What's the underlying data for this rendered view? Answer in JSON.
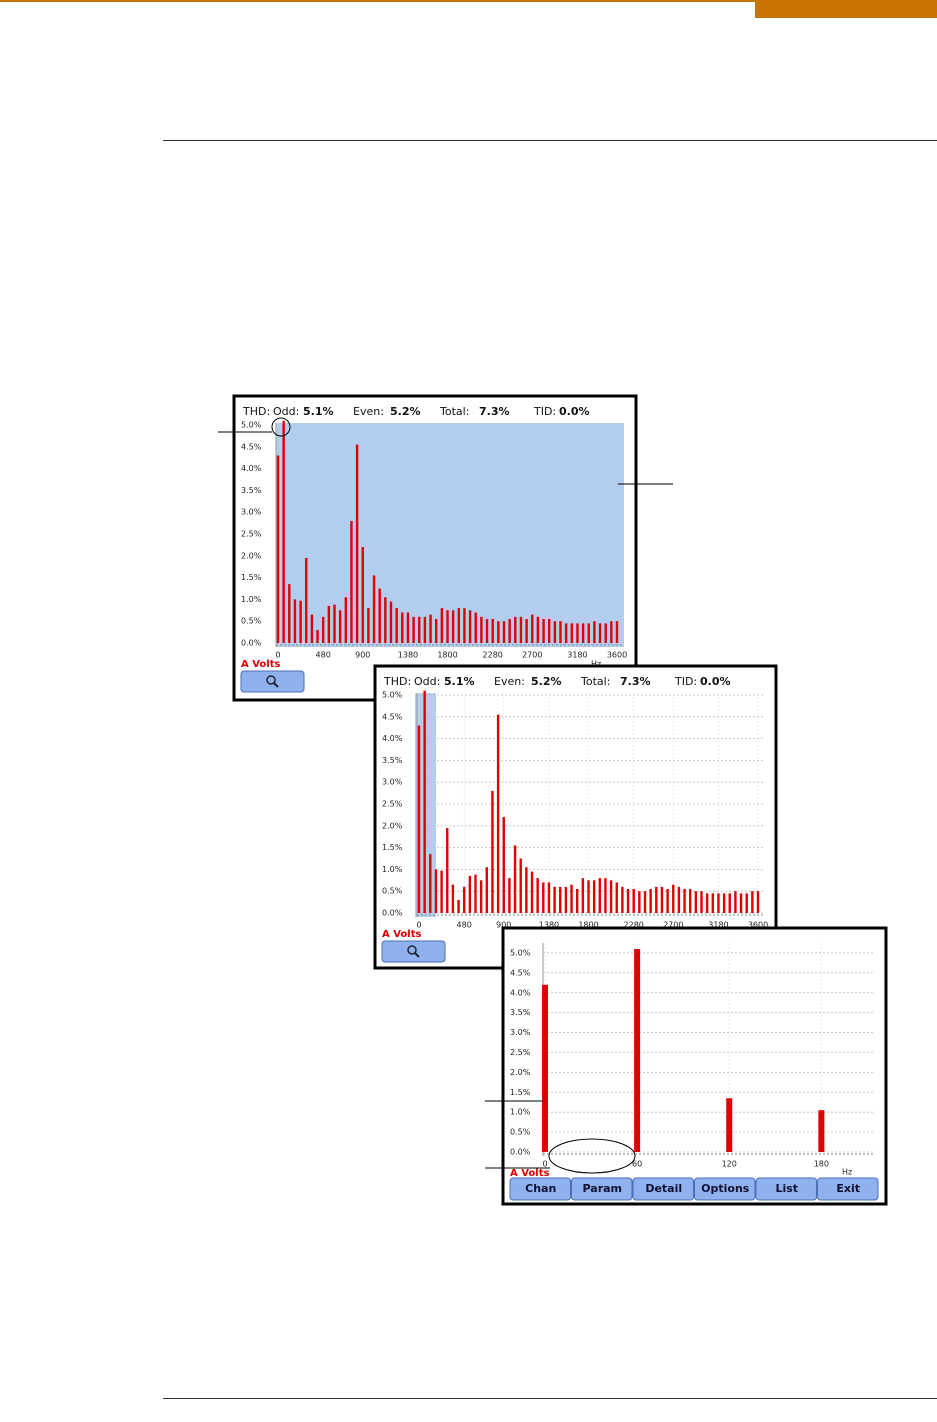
{
  "chart_data": [
    {
      "type": "bar",
      "header": [
        "THD:",
        "Odd:",
        "5.1%",
        "Even:",
        "5.2%",
        "Total:",
        "7.3%",
        "TID:",
        "0.0%"
      ],
      "x": [
        0,
        60,
        120,
        180,
        240,
        300,
        360,
        420,
        480,
        540,
        600,
        660,
        720,
        780,
        840,
        900,
        960,
        1020,
        1080,
        1140,
        1200,
        1260,
        1320,
        1380,
        1440,
        1500,
        1560,
        1620,
        1680,
        1740,
        1800,
        1860,
        1920,
        1980,
        2040,
        2100,
        2160,
        2220,
        2280,
        2340,
        2400,
        2460,
        2520,
        2580,
        2640,
        2700,
        2760,
        2820,
        2880,
        2940,
        3000,
        3060,
        3120,
        3180,
        3240,
        3300,
        3360,
        3420,
        3480,
        3540,
        3600
      ],
      "values": [
        4.3,
        5.1,
        1.35,
        1.0,
        0.97,
        1.95,
        0.65,
        0.3,
        0.6,
        0.85,
        0.88,
        0.75,
        1.05,
        2.8,
        4.55,
        2.2,
        0.8,
        1.55,
        1.25,
        1.05,
        0.95,
        0.8,
        0.7,
        0.7,
        0.6,
        0.6,
        0.6,
        0.65,
        0.55,
        0.8,
        0.75,
        0.75,
        0.8,
        0.8,
        0.75,
        0.7,
        0.6,
        0.55,
        0.55,
        0.5,
        0.5,
        0.55,
        0.6,
        0.6,
        0.55,
        0.65,
        0.6,
        0.55,
        0.55,
        0.5,
        0.5,
        0.45,
        0.45,
        0.45,
        0.45,
        0.45,
        0.5,
        0.45,
        0.45,
        0.5,
        0.5
      ],
      "color": "#e00000",
      "xlim": [
        0,
        3600
      ],
      "xticks": [
        0,
        480,
        900,
        1380,
        1800,
        2280,
        2700,
        3180,
        3600
      ],
      "ylim": [
        0,
        5
      ],
      "yticks": [
        {
          "value": 0,
          "label": "0.0%"
        },
        {
          "value": 0.5,
          "label": "0.5%"
        },
        {
          "value": 1,
          "label": "1.0%"
        },
        {
          "value": 1.5,
          "label": "1.5%"
        },
        {
          "value": 2,
          "label": "2.0%"
        },
        {
          "value": 2.5,
          "label": "2.5%"
        },
        {
          "value": 3,
          "label": "3.0%"
        },
        {
          "value": 3.5,
          "label": "3.5%"
        },
        {
          "value": 4,
          "label": "4.0%"
        },
        {
          "value": 4.5,
          "label": "4.5%"
        },
        {
          "value": 5,
          "label": "5.0%"
        }
      ],
      "grid": false,
      "series_label": "A Volts",
      "x_unit": "Hz"
    },
    {
      "type": "bar",
      "header": [
        "THD:",
        "Odd:",
        "5.1%",
        "Even:",
        "5.2%",
        "Total:",
        "7.3%",
        "TID:",
        "0.0%"
      ],
      "x": [
        0,
        60,
        120,
        180,
        240,
        300,
        360,
        420,
        480,
        540,
        600,
        660,
        720,
        780,
        840,
        900,
        960,
        1020,
        1080,
        1140,
        1200,
        1260,
        1320,
        1380,
        1440,
        1500,
        1560,
        1620,
        1680,
        1740,
        1800,
        1860,
        1920,
        1980,
        2040,
        2100,
        2160,
        2220,
        2280,
        2340,
        2400,
        2460,
        2520,
        2580,
        2640,
        2700,
        2760,
        2820,
        2880,
        2940,
        3000,
        3060,
        3120,
        3180,
        3240,
        3300,
        3360,
        3420,
        3480,
        3540,
        3600
      ],
      "values": [
        4.3,
        5.1,
        1.35,
        1.0,
        0.97,
        1.95,
        0.65,
        0.3,
        0.6,
        0.85,
        0.88,
        0.75,
        1.05,
        2.8,
        4.55,
        2.2,
        0.8,
        1.55,
        1.25,
        1.05,
        0.95,
        0.8,
        0.7,
        0.7,
        0.6,
        0.6,
        0.6,
        0.65,
        0.55,
        0.8,
        0.75,
        0.75,
        0.8,
        0.8,
        0.75,
        0.7,
        0.6,
        0.55,
        0.55,
        0.5,
        0.5,
        0.55,
        0.6,
        0.6,
        0.55,
        0.65,
        0.6,
        0.55,
        0.55,
        0.5,
        0.5,
        0.45,
        0.45,
        0.45,
        0.45,
        0.45,
        0.5,
        0.45,
        0.45,
        0.5,
        0.5
      ],
      "color": "#e00000",
      "xlim": [
        0,
        3600
      ],
      "xticks": [
        0,
        480,
        900,
        1380,
        1800,
        2280,
        2700,
        3180,
        3600
      ],
      "ylim": [
        0,
        5
      ],
      "yticks": [
        {
          "value": 0,
          "label": "0.0%"
        },
        {
          "value": 0.5,
          "label": "0.5%"
        },
        {
          "value": 1,
          "label": "1.0%"
        },
        {
          "value": 1.5,
          "label": "1.5%"
        },
        {
          "value": 2,
          "label": "2.0%"
        },
        {
          "value": 2.5,
          "label": "2.5%"
        },
        {
          "value": 3,
          "label": "3.0%"
        },
        {
          "value": 3.5,
          "label": "3.5%"
        },
        {
          "value": 4,
          "label": "4.0%"
        },
        {
          "value": 4.5,
          "label": "4.5%"
        },
        {
          "value": 5,
          "label": "5.0%"
        }
      ],
      "grid": true,
      "series_label": "A Volts"
    },
    {
      "type": "bar",
      "x": [
        0,
        60,
        120,
        180
      ],
      "values": [
        4.2,
        5.1,
        1.35,
        1.05
      ],
      "color": "#e00000",
      "xlim": [
        0,
        213
      ],
      "xticks": [
        0,
        60,
        120,
        180
      ],
      "ylim": [
        0,
        5.2
      ],
      "yticks": [
        {
          "value": 0,
          "label": "0.0%"
        },
        {
          "value": 0.5,
          "label": "0.5%"
        },
        {
          "value": 1,
          "label": "1.0%"
        },
        {
          "value": 1.5,
          "label": "1.5%"
        },
        {
          "value": 2,
          "label": "2.0%"
        },
        {
          "value": 2.5,
          "label": "2.5%"
        },
        {
          "value": 3,
          "label": "3.0%"
        },
        {
          "value": 3.5,
          "label": "3.5%"
        },
        {
          "value": 4,
          "label": "4.0%"
        },
        {
          "value": 4.5,
          "label": "4.5%"
        },
        {
          "value": 5,
          "label": "5.0%"
        }
      ],
      "grid": true,
      "series_label": "A Volts",
      "x_unit": "Hz",
      "buttons": [
        "Chan",
        "Param",
        "Detail",
        "Options",
        "List",
        "Exit"
      ]
    }
  ]
}
